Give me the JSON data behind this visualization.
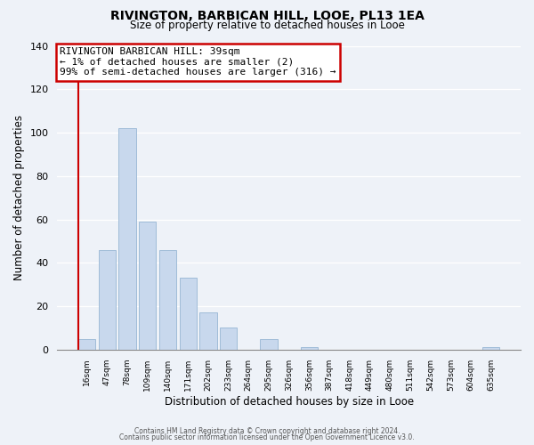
{
  "title": "RIVINGTON, BARBICAN HILL, LOOE, PL13 1EA",
  "subtitle": "Size of property relative to detached houses in Looe",
  "xlabel": "Distribution of detached houses by size in Looe",
  "ylabel": "Number of detached properties",
  "bar_color": "#c8d8ed",
  "bar_edge_color": "#a0bcd8",
  "marker_line_color": "#cc0000",
  "background_color": "#eef2f8",
  "grid_color": "#ffffff",
  "bin_labels": [
    "16sqm",
    "47sqm",
    "78sqm",
    "109sqm",
    "140sqm",
    "171sqm",
    "202sqm",
    "233sqm",
    "264sqm",
    "295sqm",
    "326sqm",
    "356sqm",
    "387sqm",
    "418sqm",
    "449sqm",
    "480sqm",
    "511sqm",
    "542sqm",
    "573sqm",
    "604sqm",
    "635sqm"
  ],
  "bar_values": [
    5,
    46,
    102,
    59,
    46,
    33,
    17,
    10,
    0,
    5,
    0,
    1,
    0,
    0,
    0,
    0,
    0,
    0,
    0,
    0,
    1
  ],
  "ylim": [
    0,
    140
  ],
  "yticks": [
    0,
    20,
    40,
    60,
    80,
    100,
    120,
    140
  ],
  "marker_bin_index": 0,
  "annotation_title": "RIVINGTON BARBICAN HILL: 39sqm",
  "annotation_line1": "← 1% of detached houses are smaller (2)",
  "annotation_line2": "99% of semi-detached houses are larger (316) →",
  "footer1": "Contains HM Land Registry data © Crown copyright and database right 2024.",
  "footer2": "Contains public sector information licensed under the Open Government Licence v3.0."
}
